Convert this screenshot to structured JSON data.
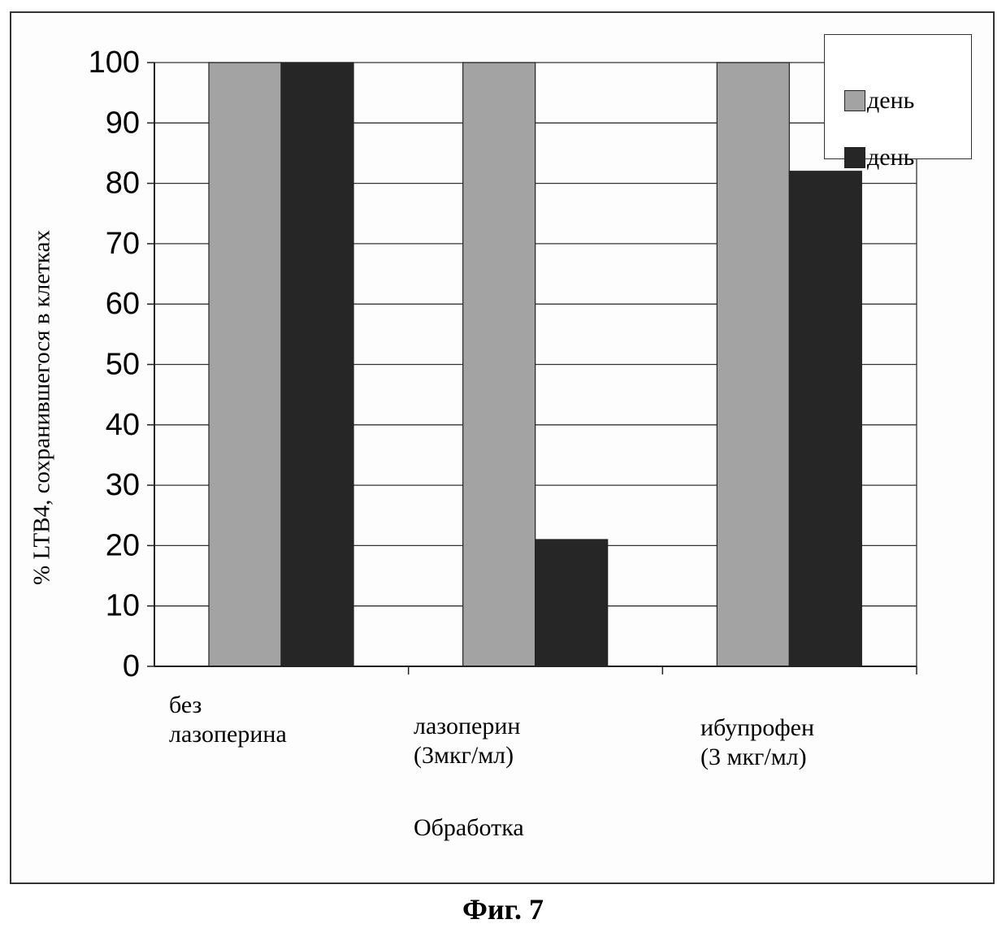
{
  "chart_data": {
    "type": "bar",
    "categories": [
      "без лазоперина",
      "лазоперин (3мкг/мл)",
      "ибупрофен (3 мкг/мл)"
    ],
    "category_lines": [
      [
        "без",
        "лазоперина"
      ],
      [
        "лазоперин",
        "(3мкг/мл)"
      ],
      [
        "ибупрофен",
        "(3 мкг/мл)"
      ]
    ],
    "series": [
      {
        "name": "день",
        "values": [
          100,
          100,
          100
        ],
        "color": "#a3a3a3"
      },
      {
        "name": "день",
        "values": [
          100,
          21,
          82
        ],
        "color": "#262626"
      }
    ],
    "xlabel": "Обработка",
    "ylabel": "% LTB4, сохранившегося в клетках",
    "ylim": [
      0,
      100
    ],
    "yticks": [
      "0",
      "10",
      "20",
      "30",
      "40",
      "50",
      "60",
      "70",
      "80",
      "90",
      "100"
    ],
    "grid": true,
    "legend": "top-right"
  },
  "caption": "Фиг. 7"
}
